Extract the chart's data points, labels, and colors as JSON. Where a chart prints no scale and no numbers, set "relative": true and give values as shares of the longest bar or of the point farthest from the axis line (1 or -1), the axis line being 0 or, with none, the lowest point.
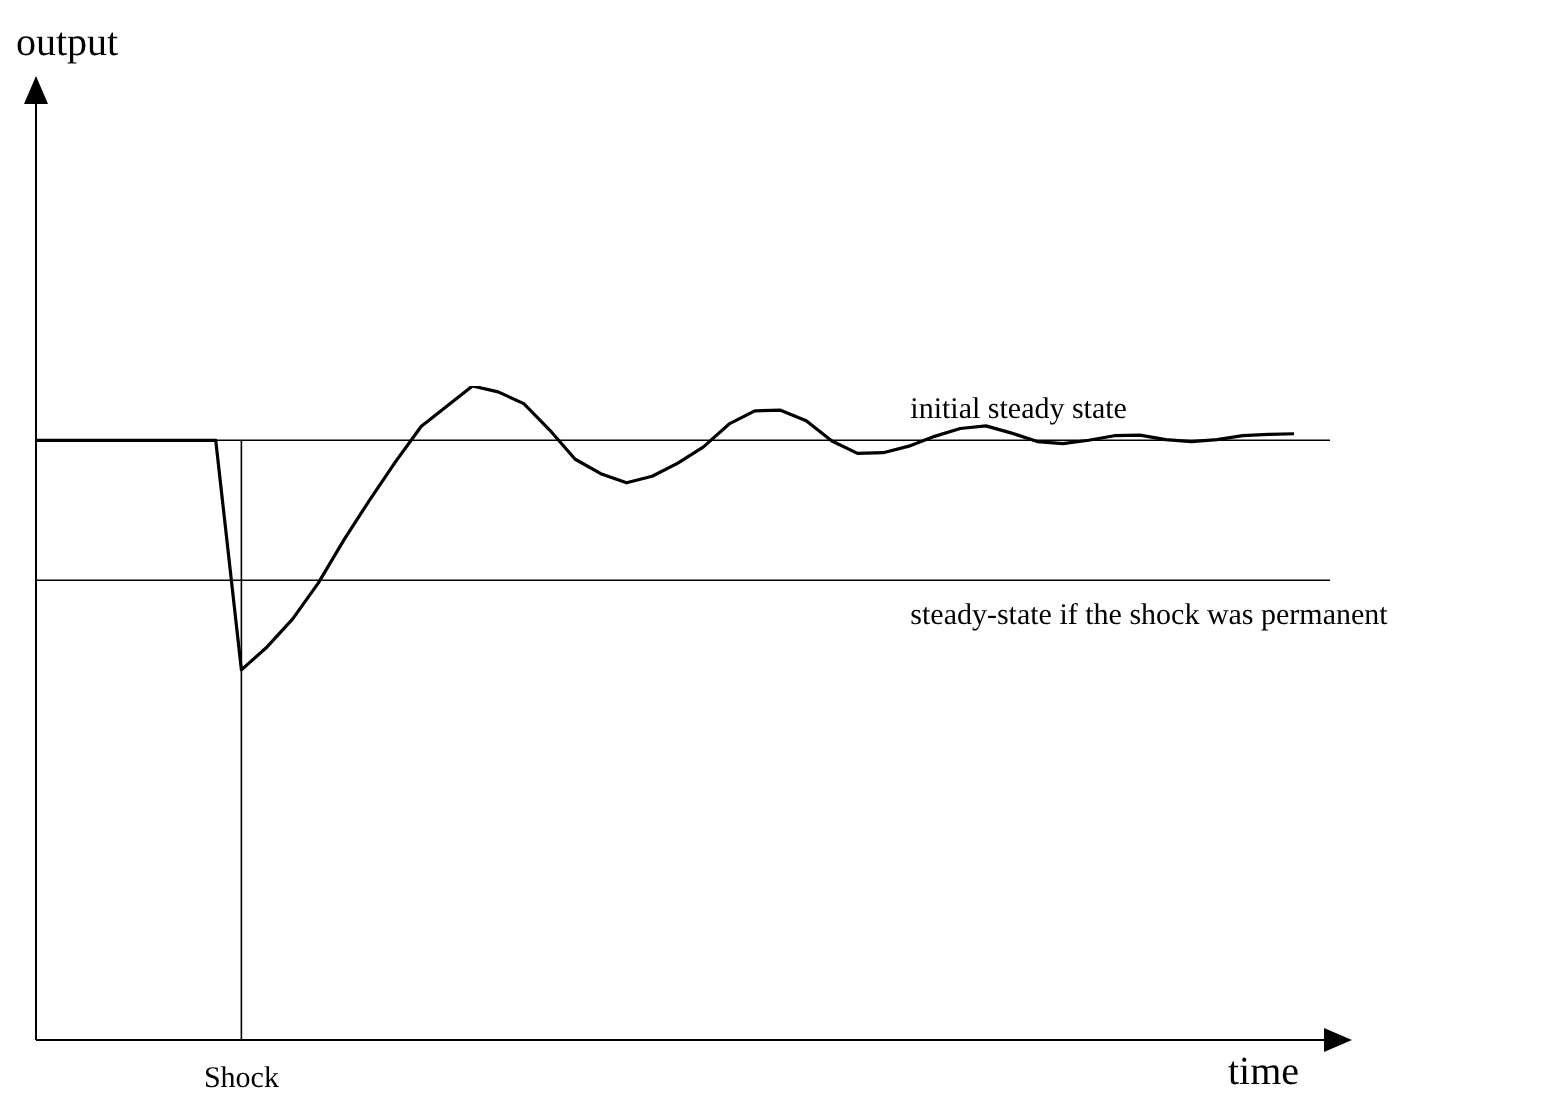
{
  "chart_data": {
    "type": "line",
    "relative": true,
    "xlabel": "time",
    "categories": [
      null,
      null,
      null,
      null,
      null,
      null,
      null,
      null,
      null,
      null,
      null,
      null,
      null,
      null,
      null,
      null,
      null,
      null,
      null,
      null,
      null,
      null,
      null,
      null,
      null,
      null,
      null,
      null,
      null,
      null,
      null,
      null,
      null,
      null,
      null,
      null,
      null,
      null,
      null,
      null,
      null,
      null,
      null,
      null,
      null,
      null,
      null,
      null,
      null,
      null
    ],
    "series": [
      {
        "color": "#000000",
        "values": [
          0.917,
          0.917,
          0.917,
          0.917,
          0.917,
          0.917,
          0.917,
          0.917,
          0.566,
          0.601,
          0.644,
          0.699,
          0.765,
          0.826,
          0.884,
          0.938,
          0.969,
          1.0,
          0.991,
          0.973,
          0.933,
          0.888,
          0.866,
          0.852,
          0.862,
          0.882,
          0.907,
          0.942,
          0.962,
          0.963,
          0.947,
          0.916,
          0.897,
          0.898,
          0.908,
          0.923,
          0.935,
          0.939,
          0.928,
          0.915,
          0.912,
          0.917,
          0.924,
          0.925,
          0.918,
          0.915,
          0.918,
          0.924,
          0.926,
          0.927
        ]
      }
    ],
    "ref_lines": [
      {
        "axis": "y",
        "value": 0.917,
        "label": "initial steady state"
      },
      {
        "axis": "y",
        "value": 0.703,
        "label": "steady-state if the shock was permanent"
      }
    ],
    "annotations": [
      "output",
      "Shock"
    ],
    "marker": "none",
    "line_style": "solid",
    "legend": false
  }
}
